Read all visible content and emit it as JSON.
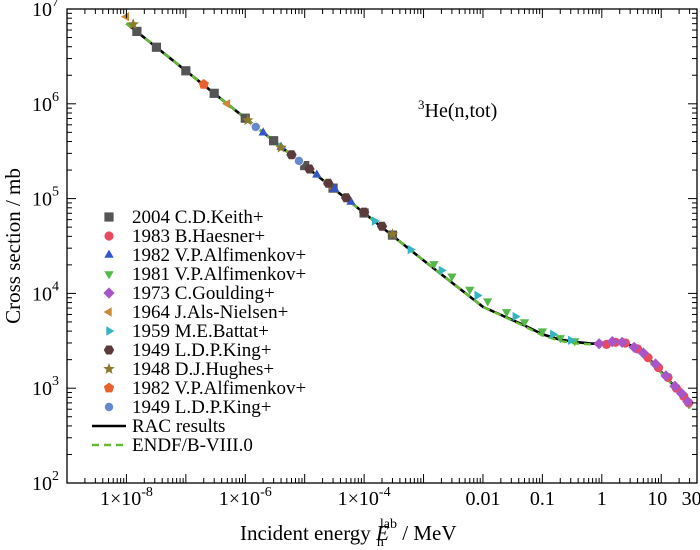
{
  "chart_data": {
    "type": "scatter",
    "title": "",
    "annotation": {
      "sup": "3",
      "text": "He(n,tot)"
    },
    "xlabel": {
      "prefix": "Incident energy ",
      "symbol": "E",
      "sub": "n",
      "sup": "lab",
      "suffix": " / MeV"
    },
    "ylabel": "Cross section / mb",
    "xscale": "log",
    "yscale": "log",
    "xlim": [
      1e-09,
      40
    ],
    "ylim": [
      100,
      10000000
    ],
    "x_ticks": [
      {
        "value": 1e-08,
        "label": "1×10",
        "exp": "-8"
      },
      {
        "value": 1e-06,
        "label": "1×10",
        "exp": "-6"
      },
      {
        "value": 0.0001,
        "label": "1×10",
        "exp": "-4"
      },
      {
        "value": 0.01,
        "label": "0.01",
        "exp": ""
      },
      {
        "value": 0.1,
        "label": "0.1",
        "exp": ""
      },
      {
        "value": 1,
        "label": "1",
        "exp": ""
      },
      {
        "value": 10,
        "label": "10",
        "exp": ""
      },
      {
        "value": 30,
        "label": "30",
        "exp": ""
      }
    ],
    "y_ticks": [
      {
        "value": 100,
        "base": "10",
        "exp": "2"
      },
      {
        "value": 1000,
        "base": "10",
        "exp": "3"
      },
      {
        "value": 10000,
        "base": "10",
        "exp": "4"
      },
      {
        "value": 100000,
        "base": "10",
        "exp": "5"
      },
      {
        "value": 1000000,
        "base": "10",
        "exp": "6"
      },
      {
        "value": 10000000,
        "base": "10",
        "exp": "7"
      }
    ],
    "legend_position": "lower-left",
    "grid": false,
    "series": [
      {
        "name": "2004 C.D.Keith+",
        "marker": "square",
        "color": "#555555",
        "points": [
          [
            1.5e-08,
            5800000.0
          ],
          [
            3.2e-08,
            3950000.0
          ],
          [
            1e-07,
            2230000.0
          ],
          [
            3e-07,
            1290000.0
          ],
          [
            1e-06,
            705000.0
          ],
          [
            3e-06,
            408000.0
          ],
          [
            1e-05,
            223000.0
          ],
          [
            3e-05,
            129000.0
          ],
          [
            0.0001,
            70500.0
          ],
          [
            0.0003,
            41200.0
          ]
        ]
      },
      {
        "name": "1983 B.Haesner+",
        "marker": "circle",
        "color": "#e84a5f",
        "points": [
          [
            1.2,
            2900.0
          ],
          [
            1.7,
            3050.0
          ],
          [
            2.5,
            3000.0
          ],
          [
            4,
            2600.0
          ],
          [
            6,
            2100.0
          ],
          [
            9,
            1650.0
          ],
          [
            13,
            1300.0
          ],
          [
            18,
            1000.0
          ],
          [
            24,
            820.0
          ],
          [
            29,
            700.0
          ]
        ]
      },
      {
        "name": "1982 V.P.Alfimenkov+",
        "marker": "triangle-up",
        "color": "#3355cc",
        "points": [
          [
            2e-06,
            495000.0
          ],
          [
            4e-06,
            350000.0
          ],
          [
            8e-06,
            250000.0
          ],
          [
            1.6e-05,
            178000.0
          ],
          [
            3.2e-05,
            126000.0
          ],
          [
            6e-05,
            92000.0
          ]
        ]
      },
      {
        "name": "1981 V.P.Alfimenkov+",
        "marker": "triangle-down",
        "color": "#55b84a",
        "points": [
          [
            0.0015,
            20500.0
          ],
          [
            0.003,
            15200.0
          ],
          [
            0.006,
            11000.0
          ],
          [
            0.012,
            8300.0
          ],
          [
            0.025,
            6400.0
          ],
          [
            0.05,
            5000.0
          ],
          [
            0.1,
            4000.0
          ],
          [
            0.2,
            3400.0
          ],
          [
            0.35,
            3150.0
          ]
        ]
      },
      {
        "name": "1973 C.Goulding+",
        "marker": "diamond",
        "color": "#a855c7",
        "points": [
          [
            0.9,
            2950.0
          ],
          [
            1.5,
            3100.0
          ],
          [
            2.2,
            3050.0
          ],
          [
            3.5,
            2700.0
          ],
          [
            5,
            2350.0
          ],
          [
            8,
            1800.0
          ],
          [
            12,
            1350.0
          ],
          [
            17,
            1050.0
          ],
          [
            22,
            880.0
          ],
          [
            28,
            720.0
          ]
        ]
      },
      {
        "name": "1964 J.Als-Nielsen+",
        "marker": "triangle-left",
        "color": "#cc8833",
        "points": [
          [
            1e-08,
            8300000.0
          ],
          [
            5e-07,
            1000000.0
          ],
          [
            2.5e-05,
            140000.0
          ]
        ]
      },
      {
        "name": "1959 M.E.Battat+",
        "marker": "triangle-right",
        "color": "#33b5c4",
        "points": [
          [
            4e-06,
            350000.0
          ],
          [
            0.00015,
            58000.0
          ],
          [
            0.0006,
            29000.0
          ],
          [
            0.002,
            17500.0
          ],
          [
            0.008,
            9500.0
          ],
          [
            0.035,
            5700.0
          ],
          [
            0.15,
            3700.0
          ],
          [
            0.3,
            3200.0
          ]
        ]
      },
      {
        "name": "1949 L.D.P.King+",
        "marker": "hexagon",
        "color": "#5a3a3a",
        "points": [
          [
            6e-06,
            290000.0
          ],
          [
            1.2e-05,
            205000.0
          ],
          [
            2.5e-05,
            145000.0
          ],
          [
            5e-05,
            102000.0
          ],
          [
            0.0001,
            72000.0
          ],
          [
            0.0002,
            51000.0
          ]
        ]
      },
      {
        "name": "1948 D.J.Hughes+",
        "marker": "star",
        "color": "#8a7a2a",
        "points": [
          [
            1.3e-08,
            6900000.0
          ],
          [
            1.1e-06,
            670000.0
          ],
          [
            4e-06,
            345000.0
          ],
          [
            0.0003,
            42000.0
          ]
        ]
      },
      {
        "name": "1982 V.P.Alfimenkov+",
        "marker": "pentagon",
        "color": "#e8602c",
        "points": [
          [
            2e-07,
            1600000.0
          ],
          [
            1.5e-06,
            570000.0
          ]
        ]
      },
      {
        "name": "1949 L.D.P.King+",
        "marker": "sphere",
        "color": "#6688cc",
        "points": [
          [
            1.5e-06,
            570000.0
          ],
          [
            8e-06,
            250000.0
          ]
        ]
      }
    ],
    "lines": [
      {
        "name": "RAC results",
        "color": "#000000",
        "dash": "solid",
        "points": [
          [
            1e-08,
            7050000.0
          ],
          [
            1e-06,
            705000.0
          ],
          [
            0.0001,
            70500.0
          ],
          [
            0.001,
            22300.0
          ],
          [
            0.01,
            7200.0
          ],
          [
            0.05,
            4600.0
          ],
          [
            0.1,
            3700.0
          ],
          [
            0.2,
            3250.0
          ],
          [
            0.4,
            3050.0
          ],
          [
            0.7,
            2950.0
          ],
          [
            1,
            3000.0
          ],
          [
            1.5,
            3150.0
          ],
          [
            2,
            3100.0
          ],
          [
            3,
            2850.0
          ],
          [
            5,
            2300.0
          ],
          [
            8,
            1750.0
          ],
          [
            12,
            1300.0
          ],
          [
            18,
            1000.0
          ],
          [
            25,
            760.0
          ],
          [
            30,
            620.0
          ]
        ]
      },
      {
        "name": "ENDF/B-VIII.0",
        "color": "#66bb33",
        "dash": "dashed",
        "points": [
          [
            1e-08,
            7050000.0
          ],
          [
            1e-06,
            705000.0
          ],
          [
            0.0001,
            70500.0
          ],
          [
            0.001,
            22300.0
          ],
          [
            0.01,
            7200.0
          ],
          [
            0.05,
            4500.0
          ],
          [
            0.1,
            3600.0
          ],
          [
            0.2,
            3150.0
          ],
          [
            0.4,
            2950.0
          ],
          [
            0.7,
            2900.0
          ],
          [
            1,
            2950.0
          ],
          [
            1.5,
            3100.0
          ],
          [
            2,
            3050.0
          ],
          [
            3,
            2800.0
          ],
          [
            5,
            2250.0
          ],
          [
            8,
            1700.0
          ],
          [
            12,
            1280.0
          ],
          [
            18,
            980.0
          ],
          [
            25,
            750.0
          ],
          [
            30,
            610.0
          ]
        ]
      }
    ]
  }
}
